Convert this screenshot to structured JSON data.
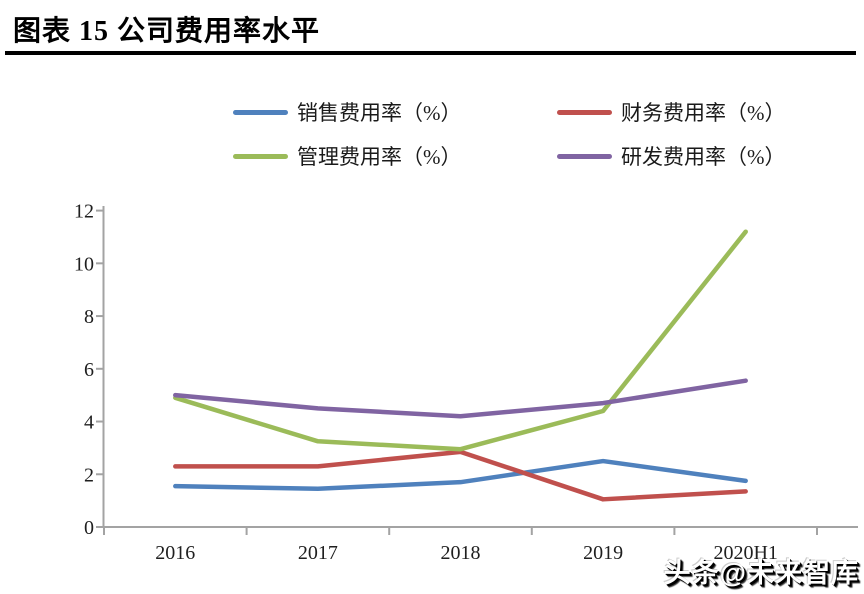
{
  "header": {
    "title": "图表 15 公司费用率水平"
  },
  "watermark": {
    "text": "头条@未来智库"
  },
  "chart_data": {
    "type": "line",
    "title": "图表 15 公司费用率水平",
    "categories": [
      "2016",
      "2017",
      "2018",
      "2019",
      "2020H1"
    ],
    "series": [
      {
        "key": "sales-expense-ratio",
        "name": "销售费用率（%）",
        "color": "#4F81BD",
        "values": [
          1.55,
          1.45,
          1.7,
          2.5,
          1.75
        ]
      },
      {
        "key": "finance-expense-ratio",
        "name": "财务费用率（%）",
        "color": "#C0504D",
        "values": [
          2.3,
          2.3,
          2.85,
          1.05,
          1.35
        ]
      },
      {
        "key": "management-expense-ratio",
        "name": "管理费用率（%）",
        "color": "#9BBB59",
        "values": [
          4.9,
          3.25,
          2.95,
          4.4,
          11.2
        ]
      },
      {
        "key": "rnd-expense-ratio",
        "name": "研发费用率（%）",
        "color": "#8064A2",
        "values": [
          5.0,
          4.5,
          4.2,
          4.7,
          5.55
        ]
      }
    ],
    "y_ticks": [
      0,
      2,
      4,
      6,
      8,
      10,
      12
    ],
    "ylim": [
      0,
      12
    ],
    "xlabel": "",
    "ylabel": "",
    "grid": false,
    "legend_position": "top",
    "axis_color": "#a3a3a3",
    "text_color": "#1f1f1f"
  }
}
